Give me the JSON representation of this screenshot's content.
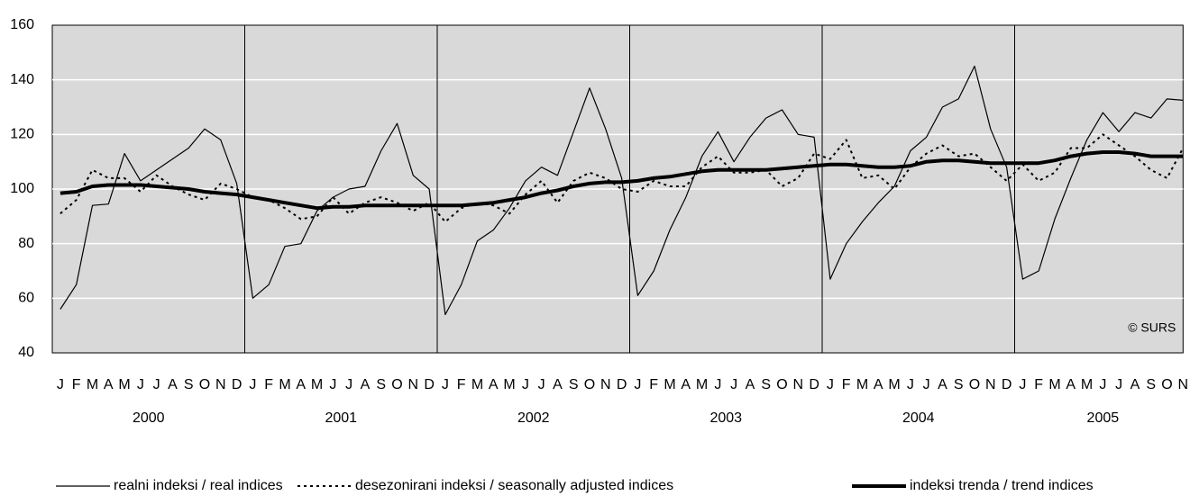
{
  "chart_data": {
    "type": "line",
    "categories": [
      "J",
      "F",
      "M",
      "A",
      "M",
      "J",
      "J",
      "A",
      "S",
      "O",
      "N",
      "D",
      "J",
      "F",
      "M",
      "A",
      "M",
      "J",
      "J",
      "A",
      "S",
      "O",
      "N",
      "D",
      "J",
      "F",
      "M",
      "A",
      "M",
      "J",
      "J",
      "A",
      "S",
      "O",
      "N",
      "D",
      "J",
      "F",
      "M",
      "A",
      "M",
      "J",
      "J",
      "A",
      "S",
      "O",
      "N",
      "D",
      "J",
      "F",
      "M",
      "A",
      "M",
      "J",
      "J",
      "A",
      "S",
      "O",
      "N",
      "D",
      "J",
      "F",
      "M",
      "A",
      "M",
      "J",
      "J",
      "A",
      "S",
      "O",
      "N"
    ],
    "years": [
      "2000",
      "2001",
      "2002",
      "2003",
      "2004",
      "2005"
    ],
    "ylim": [
      40,
      160
    ],
    "yticks": [
      40,
      60,
      80,
      100,
      120,
      140,
      160
    ],
    "grid": true,
    "annotation": "© SURS",
    "series": [
      {
        "name": "realni indeksi / real indices",
        "color": "#000000",
        "line_style": "solid",
        "values": [
          56,
          65,
          94,
          94.5,
          113,
          103,
          107,
          111,
          115,
          122,
          118,
          102,
          60,
          65,
          79,
          80,
          92,
          97,
          100,
          101,
          114,
          124,
          105,
          100,
          54,
          65,
          81,
          85,
          93,
          103,
          108,
          105,
          121,
          137,
          122,
          104,
          61,
          70,
          85,
          97,
          112,
          121,
          110,
          119,
          126,
          129,
          120,
          119,
          67,
          80,
          88,
          95,
          101,
          114,
          119,
          130,
          133,
          145,
          122,
          108,
          67,
          70,
          89,
          104,
          118,
          128,
          121,
          128,
          126,
          133,
          132.5
        ]
      },
      {
        "name": "desezonirani indeksi / seasonally adjusted indices",
        "color": "#000000",
        "line_style": "dashed",
        "values": [
          91,
          96,
          107,
          104,
          104,
          99,
          105,
          101,
          98,
          96,
          102,
          100,
          97,
          96,
          93,
          89,
          90,
          97,
          91,
          95,
          97,
          95,
          92,
          95,
          88,
          93,
          95,
          94,
          91,
          98,
          103,
          95,
          103,
          106,
          104,
          100,
          99,
          103,
          101,
          101,
          108,
          112,
          106,
          106,
          107,
          101,
          104,
          113,
          111,
          118,
          104,
          105,
          100,
          108,
          113,
          116,
          112,
          113,
          108,
          103,
          109,
          103,
          106,
          115,
          115,
          120,
          116,
          112,
          107,
          104,
          115
        ]
      },
      {
        "name": "indeksi trenda / trend indices",
        "color": "#000000",
        "line_style": "thick",
        "values": [
          98.5,
          99,
          101,
          101.5,
          101.5,
          101.5,
          101,
          100.5,
          100,
          99,
          98.5,
          98,
          97,
          96,
          95,
          94,
          93,
          93.5,
          93.5,
          94,
          94,
          94,
          94,
          94,
          94,
          94,
          94.5,
          95,
          96,
          97,
          98.5,
          99.5,
          101,
          102,
          102.5,
          102.5,
          103,
          104,
          104.5,
          105.5,
          106.5,
          107,
          107,
          107,
          107,
          107.5,
          108,
          108.5,
          109,
          109,
          108.5,
          108,
          108,
          108.5,
          110,
          110.5,
          110.5,
          110,
          109.5,
          109.5,
          109.5,
          109.5,
          110.5,
          112,
          113,
          113.5,
          113.5,
          113,
          112,
          112,
          112
        ]
      }
    ]
  }
}
